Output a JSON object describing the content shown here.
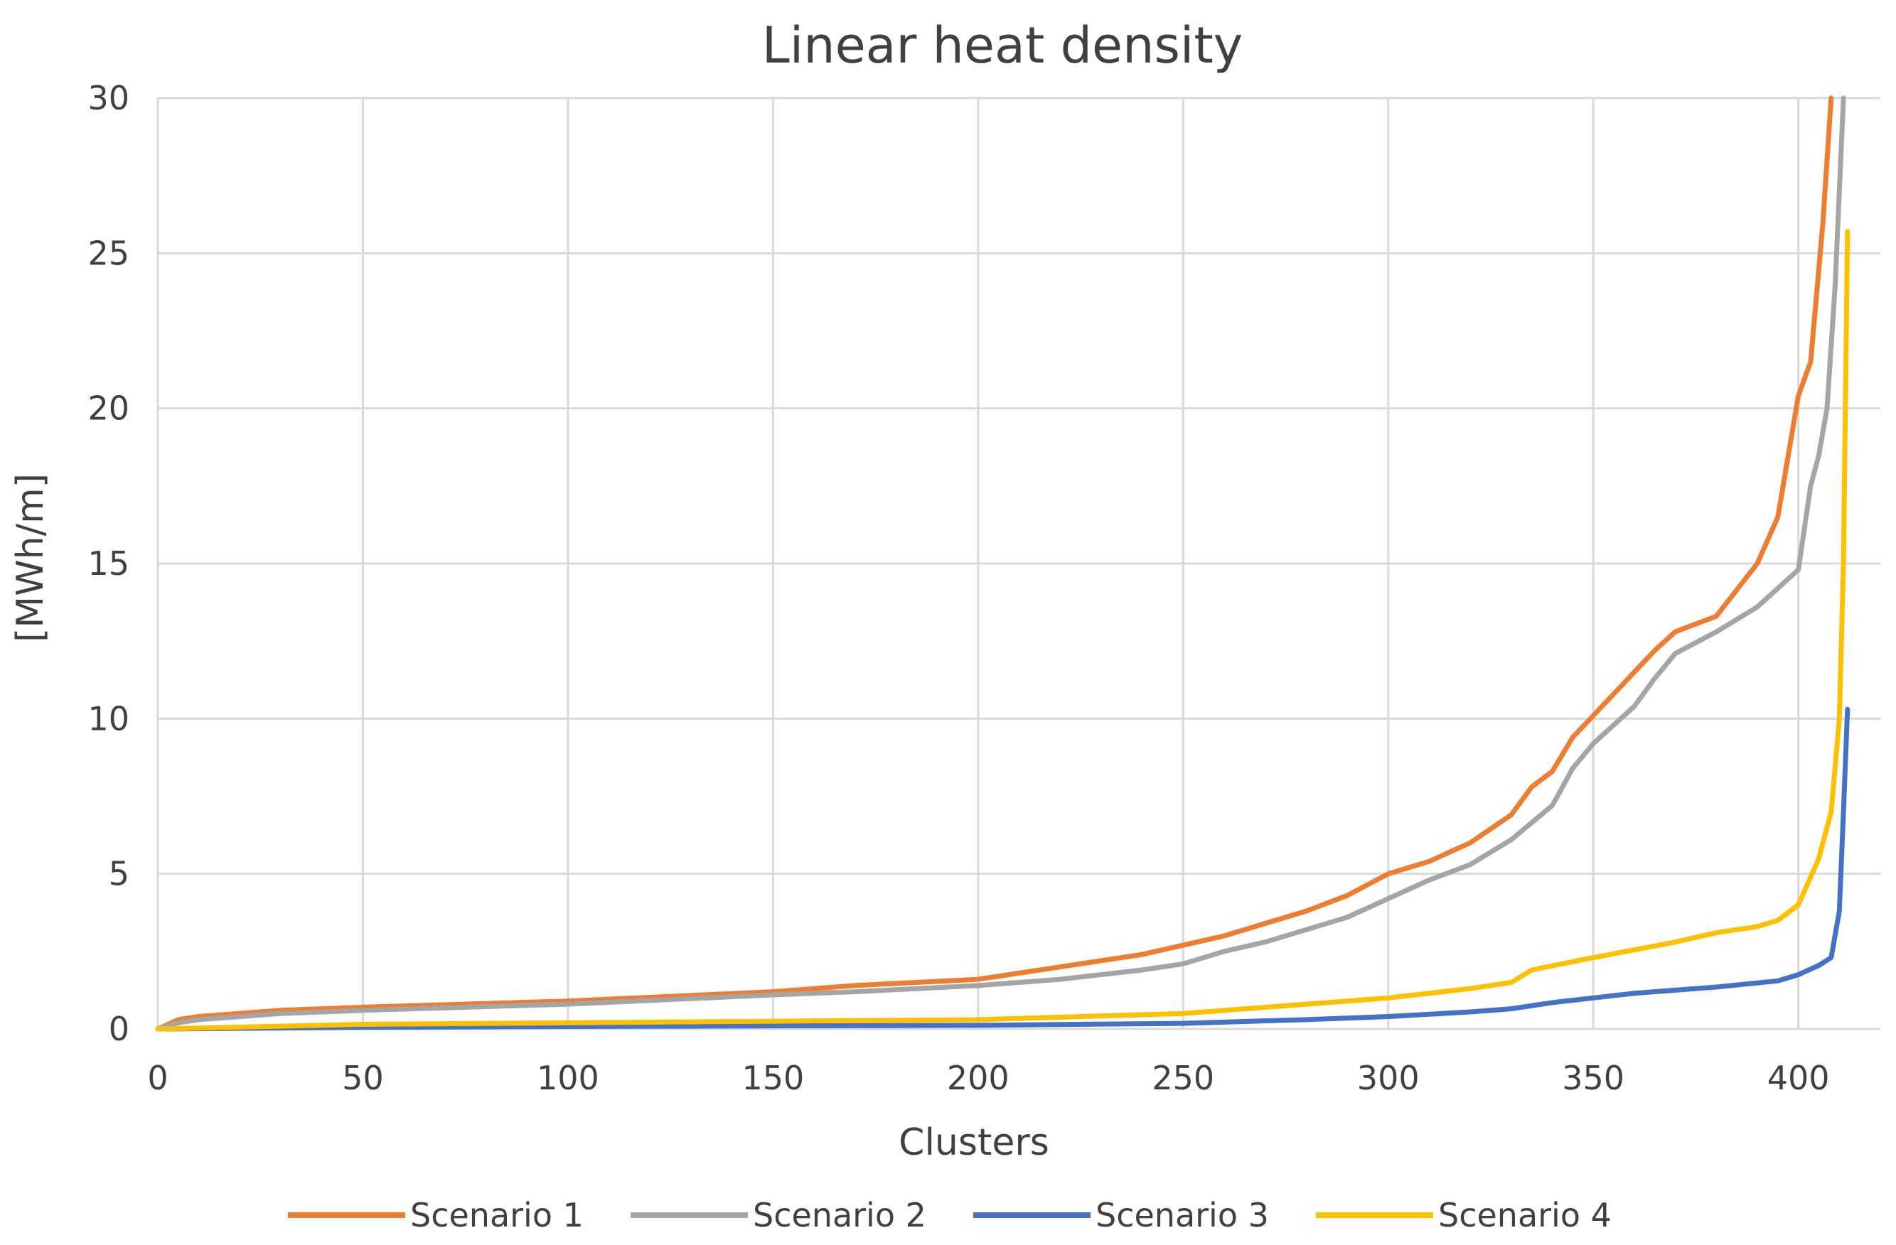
{
  "chart_data": {
    "type": "line",
    "title": "Linear heat density",
    "xlabel": "Clusters",
    "ylabel": "[MWh/m]",
    "xlim": [
      0,
      420
    ],
    "ylim": [
      0,
      30
    ],
    "xticks": [
      0,
      50,
      100,
      150,
      200,
      250,
      300,
      350,
      400
    ],
    "yticks": [
      0,
      5,
      10,
      15,
      20,
      25,
      30
    ],
    "grid": true,
    "legend_position": "bottom",
    "series": [
      {
        "name": "Scenario 1",
        "color": "#ED7D31",
        "x": [
          0,
          5,
          10,
          30,
          50,
          100,
          150,
          170,
          200,
          220,
          240,
          250,
          260,
          270,
          280,
          290,
          300,
          310,
          320,
          330,
          335,
          340,
          345,
          350,
          360,
          365,
          370,
          380,
          390,
          395,
          400,
          403,
          405,
          406,
          407,
          408
        ],
        "y": [
          0,
          0.3,
          0.4,
          0.6,
          0.7,
          0.9,
          1.2,
          1.4,
          1.6,
          2.0,
          2.4,
          2.7,
          3.0,
          3.4,
          3.8,
          4.3,
          5.0,
          5.4,
          6.0,
          6.9,
          7.8,
          8.3,
          9.4,
          10.1,
          11.5,
          12.2,
          12.8,
          13.3,
          15.0,
          16.5,
          20.4,
          21.5,
          24.5,
          26.0,
          28.0,
          30.0
        ]
      },
      {
        "name": "Scenario 2",
        "color": "#A5A5A5",
        "x": [
          0,
          5,
          10,
          30,
          50,
          100,
          150,
          170,
          200,
          220,
          240,
          250,
          260,
          270,
          280,
          290,
          300,
          310,
          320,
          330,
          340,
          345,
          350,
          360,
          365,
          370,
          380,
          390,
          400,
          403,
          405,
          407,
          409,
          410,
          411
        ],
        "y": [
          0,
          0.2,
          0.3,
          0.5,
          0.6,
          0.8,
          1.1,
          1.2,
          1.4,
          1.6,
          1.9,
          2.1,
          2.5,
          2.8,
          3.2,
          3.6,
          4.2,
          4.8,
          5.3,
          6.1,
          7.2,
          8.4,
          9.2,
          10.4,
          11.3,
          12.1,
          12.8,
          13.6,
          14.8,
          17.5,
          18.5,
          20.0,
          24.0,
          27.0,
          30.0
        ]
      },
      {
        "name": "Scenario 3",
        "color": "#4472C4",
        "x": [
          0,
          50,
          100,
          150,
          200,
          250,
          280,
          300,
          320,
          330,
          340,
          350,
          360,
          380,
          395,
          400,
          405,
          408,
          410,
          411,
          412
        ],
        "y": [
          0,
          0.05,
          0.08,
          0.1,
          0.12,
          0.18,
          0.3,
          0.4,
          0.55,
          0.65,
          0.85,
          1.0,
          1.15,
          1.35,
          1.55,
          1.75,
          2.05,
          2.3,
          3.8,
          7.0,
          10.3
        ]
      },
      {
        "name": "Scenario 4",
        "color": "#FFC000",
        "x": [
          0,
          50,
          100,
          150,
          200,
          250,
          280,
          300,
          320,
          330,
          335,
          350,
          370,
          380,
          390,
          395,
          400,
          402,
          405,
          408,
          410,
          411,
          412
        ],
        "y": [
          0,
          0.15,
          0.2,
          0.25,
          0.3,
          0.5,
          0.8,
          1.0,
          1.3,
          1.5,
          1.9,
          2.3,
          2.8,
          3.1,
          3.3,
          3.5,
          4.0,
          4.6,
          5.5,
          7.0,
          10.0,
          15.0,
          25.7
        ]
      }
    ]
  }
}
